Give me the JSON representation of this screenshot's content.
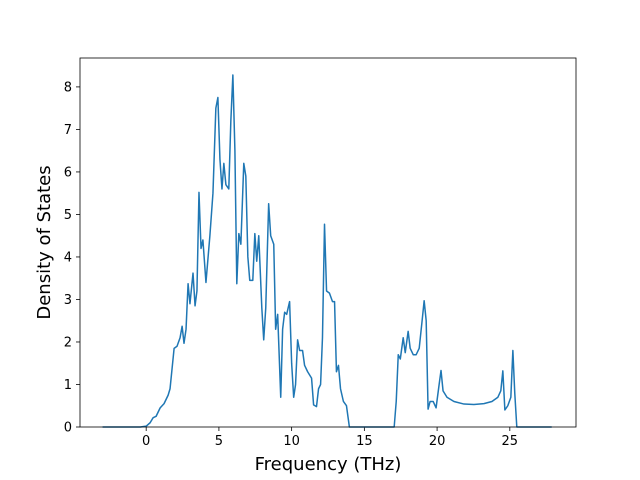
{
  "chart_data": {
    "type": "line",
    "x_label": "Frequency (THz)",
    "y_label": "Density of States",
    "x": [
      -3.0,
      -0.4,
      0.0,
      0.27,
      0.48,
      0.68,
      0.96,
      1.23,
      1.51,
      1.64,
      1.92,
      2.12,
      2.33,
      2.47,
      2.6,
      2.74,
      2.88,
      3.01,
      3.22,
      3.36,
      3.49,
      3.63,
      3.77,
      3.9,
      4.11,
      4.38,
      4.59,
      4.79,
      4.93,
      5.07,
      5.21,
      5.34,
      5.48,
      5.68,
      5.82,
      5.96,
      6.1,
      6.23,
      6.37,
      6.51,
      6.71,
      6.85,
      6.99,
      7.12,
      7.33,
      7.47,
      7.6,
      7.74,
      7.95,
      8.08,
      8.22,
      8.42,
      8.56,
      8.77,
      8.9,
      9.04,
      9.25,
      9.38,
      9.52,
      9.66,
      9.86,
      10.0,
      10.14,
      10.27,
      10.41,
      10.55,
      10.75,
      10.89,
      11.1,
      11.37,
      11.51,
      11.71,
      11.85,
      11.99,
      12.12,
      12.26,
      12.4,
      12.6,
      12.81,
      12.95,
      13.08,
      13.22,
      13.36,
      13.56,
      13.77,
      13.97,
      17.05,
      17.19,
      17.33,
      17.47,
      17.67,
      17.81,
      18.01,
      18.15,
      18.36,
      18.56,
      18.77,
      18.97,
      19.11,
      19.25,
      19.38,
      19.52,
      19.73,
      19.93,
      20.14,
      20.27,
      20.41,
      20.68,
      21.16,
      21.85,
      22.53,
      23.22,
      23.77,
      24.18,
      24.38,
      24.52,
      24.66,
      24.86,
      25.07,
      25.21,
      25.34,
      25.48,
      27.88
    ],
    "series": [
      {
        "color": "#1f77b4",
        "values": [
          0,
          0,
          0.02,
          0.1,
          0.22,
          0.25,
          0.45,
          0.55,
          0.75,
          0.9,
          1.85,
          1.9,
          2.1,
          2.37,
          1.97,
          2.3,
          3.37,
          2.9,
          3.62,
          2.85,
          3.2,
          5.52,
          4.2,
          4.4,
          3.4,
          4.5,
          5.5,
          7.5,
          7.75,
          6.3,
          5.6,
          6.2,
          5.7,
          5.6,
          7.2,
          8.28,
          6.5,
          3.37,
          4.55,
          4.3,
          6.2,
          5.9,
          4.0,
          3.45,
          3.45,
          4.55,
          3.9,
          4.5,
          2.8,
          2.05,
          2.8,
          5.25,
          4.5,
          4.3,
          2.3,
          2.65,
          0.7,
          2.3,
          2.7,
          2.65,
          2.95,
          1.5,
          0.7,
          1.0,
          2.05,
          1.8,
          1.8,
          1.45,
          1.3,
          1.15,
          0.52,
          0.48,
          0.9,
          1.0,
          2.1,
          4.77,
          3.2,
          3.15,
          2.95,
          2.95,
          1.3,
          1.45,
          0.9,
          0.6,
          0.5,
          0,
          0,
          0.6,
          1.7,
          1.6,
          2.1,
          1.75,
          2.25,
          1.85,
          1.7,
          1.7,
          1.85,
          2.5,
          2.97,
          2.5,
          0.42,
          0.6,
          0.6,
          0.45,
          1.0,
          1.33,
          0.85,
          0.7,
          0.6,
          0.54,
          0.53,
          0.55,
          0.6,
          0.7,
          0.85,
          1.32,
          0.4,
          0.5,
          0.7,
          1.8,
          0.8,
          0,
          0
        ]
      }
    ],
    "xlim": [
      -4.55,
      29.55
    ],
    "xticks": [
      0,
      5,
      10,
      15,
      20,
      25
    ],
    "ylim": [
      0,
      8.68
    ],
    "yticks": [
      0,
      1,
      2,
      3,
      4,
      5,
      6,
      7,
      8
    ]
  }
}
